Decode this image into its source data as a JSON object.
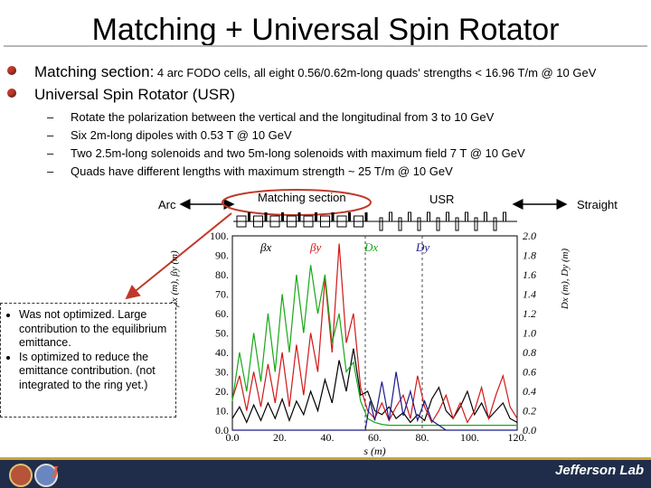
{
  "title": "Matching + Universal Spin Rotator",
  "bullets": {
    "b1_head": "Matching section:",
    "b1_rest": " 4 arc FODO cells, all eight 0.56/0.62m-long quads' strengths < 16.96 T/m @ 10 GeV",
    "b2": "Universal Spin Rotator (USR)"
  },
  "subitems": [
    "Rotate the polarization between the vertical and the longitudinal from 3 to 10 GeV",
    "Six 2m-long dipoles with 0.53 T @ 10 GeV",
    "Two 2.5m-long solenoids and two 5m-long solenoids with maximum field 7 T @ 10 GeV",
    "Quads have different lengths with maximum strength ~ 25 T/m @ 10 GeV"
  ],
  "labels": {
    "arc": "Arc",
    "matching": "Matching section",
    "usr": "USR",
    "straight": "Straight"
  },
  "note": [
    "Was not optimized. Large contribution to the equilibrium emittance.",
    "Is optimized to reduce the emittance contribution. (not integrated to the ring yet.)"
  ],
  "footer": {
    "brand": "Jefferson Lab",
    "logo_mark": "J"
  },
  "colors": {
    "betax": "#000000",
    "betay": "#d01818",
    "dx": "#18a818",
    "dy": "#1a1a8a",
    "bullet": "#c0392b"
  },
  "chart_data": {
    "type": "line",
    "xlabel": "s (m)",
    "ylabel_left": "βx (m), βy (m)",
    "ylabel_right": "Dx (m), Dy (m)",
    "x_ticks": [
      "0.0",
      "20.",
      "40.",
      "60.",
      "80.",
      "100.",
      "120."
    ],
    "y_left_ticks": [
      "0.0",
      "10.",
      "20.",
      "30.",
      "40.",
      "50.",
      "60.",
      "70.",
      "80.",
      "90.",
      "100."
    ],
    "y_right_ticks": [
      "0.0",
      "0.2",
      "0.4",
      "0.6",
      "0.8",
      "1.0",
      "1.2",
      "1.4",
      "1.6",
      "1.8",
      "2.0"
    ],
    "xlim": [
      0,
      120
    ],
    "ylim_left": [
      0,
      100
    ],
    "ylim_right": [
      0,
      2
    ],
    "legend": [
      "βx",
      "βy",
      "Dx",
      "Dy"
    ],
    "markers_s": [
      56,
      80
    ],
    "series": [
      {
        "name": "βx",
        "x": [
          0,
          3,
          6,
          9,
          12,
          15,
          18,
          21,
          24,
          27,
          30,
          33,
          36,
          39,
          42,
          45,
          48,
          51,
          54,
          57,
          60,
          63,
          66,
          69,
          72,
          75,
          78,
          81,
          84,
          87,
          90,
          93,
          96,
          99,
          102,
          105,
          108,
          111,
          114,
          117,
          120
        ],
        "values": [
          6,
          12,
          4,
          13,
          5,
          14,
          6,
          16,
          5,
          15,
          8,
          20,
          10,
          26,
          14,
          36,
          20,
          42,
          18,
          20,
          10,
          8,
          12,
          6,
          9,
          4,
          8,
          5,
          16,
          22,
          10,
          6,
          12,
          20,
          8,
          14,
          6,
          10,
          14,
          6,
          4
        ]
      },
      {
        "name": "βy",
        "x": [
          0,
          3,
          6,
          9,
          12,
          15,
          18,
          21,
          24,
          27,
          30,
          33,
          36,
          39,
          42,
          45,
          48,
          51,
          54,
          57,
          60,
          63,
          66,
          69,
          72,
          75,
          78,
          81,
          84,
          87,
          90,
          93,
          96,
          99,
          102,
          105,
          108,
          111,
          114,
          117,
          120
        ],
        "values": [
          16,
          28,
          10,
          30,
          12,
          34,
          14,
          40,
          12,
          44,
          18,
          50,
          30,
          78,
          40,
          96,
          45,
          60,
          22,
          10,
          6,
          14,
          5,
          12,
          18,
          6,
          28,
          12,
          4,
          10,
          18,
          6,
          14,
          4,
          10,
          22,
          6,
          18,
          28,
          12,
          6
        ]
      },
      {
        "name": "Dx",
        "x": [
          0,
          3,
          6,
          9,
          12,
          15,
          18,
          21,
          24,
          27,
          30,
          33,
          36,
          39,
          42,
          45,
          48,
          51,
          54,
          57,
          60,
          63,
          66,
          69,
          72,
          75,
          78,
          81,
          84,
          87,
          90,
          93,
          96,
          99,
          102,
          105,
          108,
          111,
          114,
          117,
          120
        ],
        "values": [
          0.3,
          0.8,
          0.4,
          1.0,
          0.5,
          1.2,
          0.6,
          1.4,
          0.8,
          1.6,
          1.0,
          1.7,
          1.2,
          1.6,
          0.9,
          1.2,
          0.6,
          0.7,
          0.3,
          0.12,
          0.08,
          0.06,
          0.05,
          0.05,
          0.05,
          0.05,
          0.05,
          0.05,
          0.05,
          0.05,
          0.05,
          0.05,
          0.05,
          0.05,
          0.05,
          0.05,
          0.05,
          0.05,
          0.05,
          0.05,
          0.05
        ]
      },
      {
        "name": "Dy",
        "x": [
          0,
          10,
          20,
          30,
          40,
          50,
          56,
          58,
          60,
          63,
          66,
          69,
          72,
          75,
          78,
          81,
          84,
          87,
          90,
          93,
          96,
          99,
          102,
          105,
          108,
          111,
          114,
          117,
          120
        ],
        "values": [
          0,
          0,
          0,
          0,
          0,
          0,
          0,
          0.3,
          0.1,
          0.5,
          0.1,
          0.6,
          0.15,
          0.4,
          0.1,
          0.3,
          0.1,
          0.05,
          0,
          0,
          0,
          0,
          0,
          0,
          0,
          0,
          0,
          0,
          0
        ]
      }
    ]
  }
}
